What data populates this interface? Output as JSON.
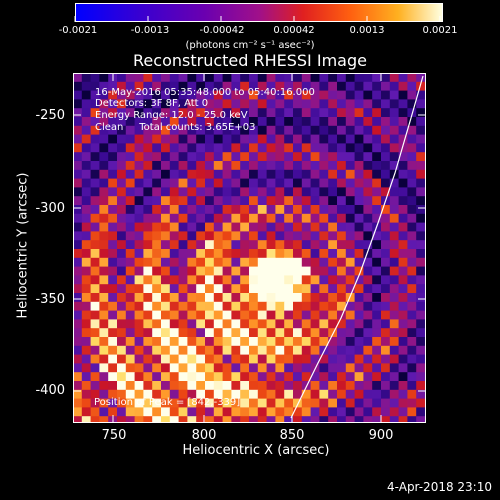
{
  "colorbar": {
    "ticks": [
      "-0.0021",
      "-0.0013",
      "-0.00042",
      "0.00042",
      "0.0013",
      "0.0021"
    ],
    "units": "(photons cm⁻² s⁻¹ asec⁻²)"
  },
  "chart_data": {
    "type": "heatmap",
    "title": "Reconstructed RHESSI Image",
    "xlabel": "Heliocentric X (arcsec)",
    "ylabel": "Heliocentric Y (arcsec)",
    "x_ticks": [
      "750",
      "800",
      "850",
      "900"
    ],
    "y_ticks": [
      "-250",
      "-300",
      "-350",
      "-400"
    ],
    "xlim": [
      732,
      926
    ],
    "ylim": [
      -418,
      -226
    ],
    "colorbar_range": [
      -0.0021,
      0.0021
    ],
    "peak_position": [
      842,
      -339
    ],
    "annotations": [
      "16-May-2016 05:35:48.000 to 05:40:16.000",
      "Detectors: 3F 8F, Att 0",
      "Energy Range: 12.0 - 25.0 keV",
      "Clean     Total counts: 3.65E+03"
    ],
    "peak_label": "Position of Peak = [842,-339]"
  },
  "footer": {
    "date": "4-Apr-2018 23:10"
  }
}
